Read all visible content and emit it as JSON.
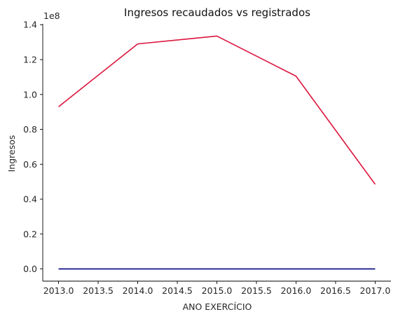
{
  "chart_data": {
    "type": "line",
    "title": "Ingresos recaudados vs registrados",
    "xlabel": "ANO EXERCÍCIO",
    "ylabel": "Ingresos",
    "y_offset_label": "1e8",
    "x": [
      2013,
      2014,
      2015,
      2016,
      2017
    ],
    "xlim": [
      2012.8,
      2017.2
    ],
    "ylim": [
      -0.07,
      1.405
    ],
    "y_scale_note": "values in units of 1e8",
    "x_ticks": [
      2013.0,
      2013.5,
      2014.0,
      2014.5,
      2015.0,
      2015.5,
      2016.0,
      2016.5,
      2017.0
    ],
    "x_tick_labels": [
      "2013.0",
      "2013.5",
      "2014.0",
      "2014.5",
      "2015.0",
      "2015.5",
      "2016.0",
      "2016.5",
      "2017.0"
    ],
    "y_ticks": [
      0.0,
      0.2,
      0.4,
      0.6,
      0.8,
      1.0,
      1.2,
      1.4
    ],
    "y_tick_labels": [
      "0.0",
      "0.2",
      "0.4",
      "0.6",
      "0.8",
      "1.0",
      "1.2",
      "1.4"
    ],
    "grid": false,
    "spines": "left-bottom",
    "series": [
      {
        "values": [
          0.93,
          1.29,
          1.335,
          1.105,
          0.485
        ],
        "color": "#dc143c"
      },
      {
        "values": [
          0.0,
          0.0,
          0.0,
          0.0,
          0.0
        ],
        "color": "#000080"
      }
    ]
  }
}
